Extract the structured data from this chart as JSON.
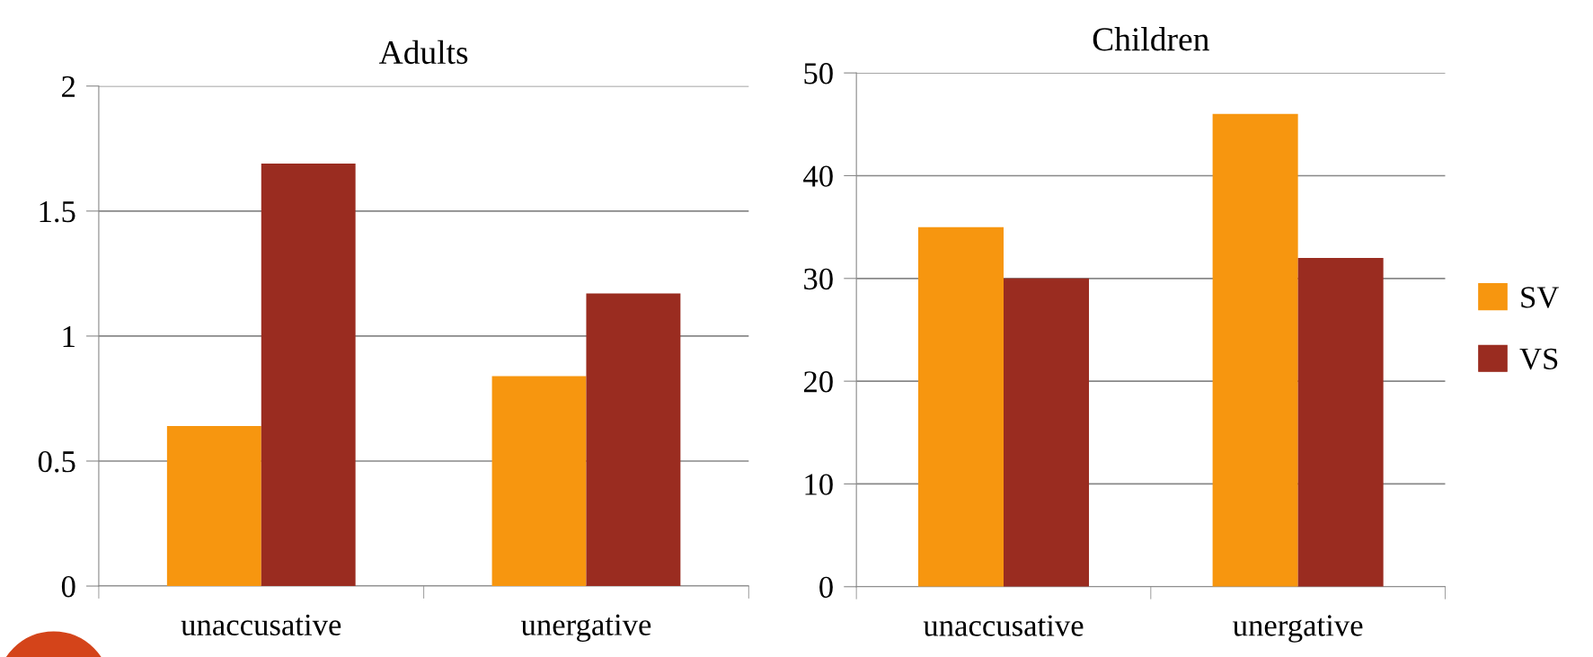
{
  "chart_data": [
    {
      "type": "bar",
      "title": "Adults",
      "categories": [
        "unaccusative",
        "unergative"
      ],
      "series": [
        {
          "color": "#f7960f",
          "values": [
            0.64,
            0.84
          ]
        },
        {
          "color": "#9a2c20",
          "values": [
            1.69,
            1.17
          ]
        }
      ],
      "ylim": [
        0,
        2
      ],
      "yticks": [
        0,
        0.5,
        1,
        1.5,
        2
      ],
      "grid": "y",
      "legend": false
    },
    {
      "type": "bar",
      "title": "Children",
      "categories": [
        "unaccusative",
        "unergative"
      ],
      "series": [
        {
          "name": "SV",
          "color": "#f7960f",
          "values": [
            35,
            46
          ]
        },
        {
          "name": "VS",
          "color": "#9a2c20",
          "values": [
            30,
            32
          ]
        }
      ],
      "ylim": [
        0,
        50
      ],
      "yticks": [
        0,
        10,
        20,
        30,
        40,
        50
      ],
      "grid": "y",
      "legend": "right"
    }
  ]
}
